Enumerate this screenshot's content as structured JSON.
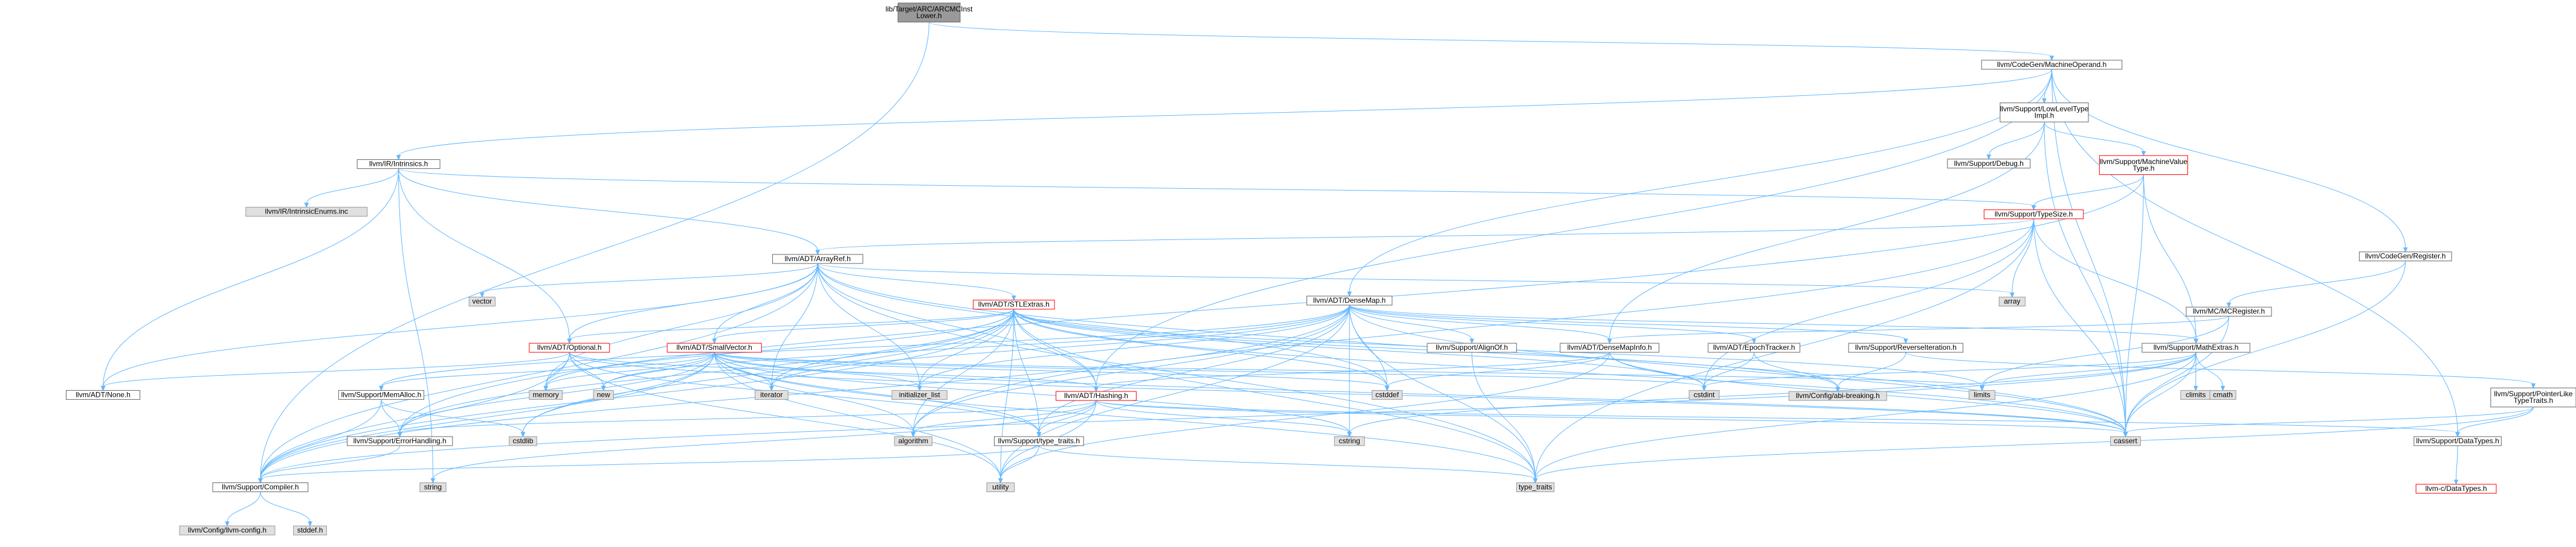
{
  "colors": {
    "edge": "#63b8ff",
    "root_fill": "#999999",
    "root_stroke": "#666666",
    "normal_fill": "#ffffff",
    "normal_stroke": "#666666",
    "truncated_stroke": "#ff0000",
    "system_fill": "#e0e0e0",
    "system_stroke": "#999999"
  },
  "nodes": {
    "root": [
      "lib/Target/ARC/ARCMCInst",
      "Lower.h"
    ],
    "machineoperand": [
      "llvm/CodeGen/MachineOperand.h"
    ],
    "intrinsics": [
      "llvm/IR/Intrinsics.h"
    ],
    "lowleveltype": [
      "llvm/Support/LowLevelType",
      "Impl.h"
    ],
    "intrinsicenums": [
      "llvm/IR/IntrinsicEnums.inc"
    ],
    "debug": [
      "llvm/Support/Debug.h"
    ],
    "machinevaluetype": [
      "llvm/Support/MachineValue",
      "Type.h"
    ],
    "typesize": [
      "llvm/Support/TypeSize.h"
    ],
    "arrayref": [
      "llvm/ADT/ArrayRef.h"
    ],
    "register": [
      "llvm/CodeGen/Register.h"
    ],
    "array": [
      "array"
    ],
    "mcregister": [
      "llvm/MC/MCRegister.h"
    ],
    "vector": [
      "vector"
    ],
    "stlextras": [
      "llvm/ADT/STLExtras.h"
    ],
    "densemap": [
      "llvm/ADT/DenseMap.h"
    ],
    "optional": [
      "llvm/ADT/Optional.h"
    ],
    "smallvector": [
      "llvm/ADT/SmallVector.h"
    ],
    "alignof": [
      "llvm/Support/AlignOf.h"
    ],
    "densemapinfo": [
      "llvm/ADT/DenseMapInfo.h"
    ],
    "epochtracker": [
      "llvm/ADT/EpochTracker.h"
    ],
    "reverseiteration": [
      "llvm/Support/ReverseIteration.h"
    ],
    "mathextras": [
      "llvm/Support/MathExtras.h"
    ],
    "none": [
      "llvm/ADT/None.h"
    ],
    "memalloc": [
      "llvm/Support/MemAlloc.h"
    ],
    "memory": [
      "memory"
    ],
    "new": [
      "new"
    ],
    "iterator": [
      "iterator"
    ],
    "initializer_list": [
      "initializer_list"
    ],
    "cstddef": [
      "cstddef"
    ],
    "hashing": [
      "llvm/ADT/Hashing.h"
    ],
    "abibreaking": [
      "llvm/Config/abi-breaking.h"
    ],
    "cstdint": [
      "cstdint"
    ],
    "limits": [
      "limits"
    ],
    "climits": [
      "climits"
    ],
    "cmath": [
      "cmath"
    ],
    "pointerliketypetraits": [
      "llvm/Support/PointerLike",
      "TypeTraits.h"
    ],
    "errorhandling": [
      "llvm/Support/ErrorHandling.h"
    ],
    "cstdlib": [
      "cstdlib"
    ],
    "algorithm": [
      "algorithm"
    ],
    "typetraits_support": [
      "llvm/Support/type_traits.h"
    ],
    "cstring": [
      "cstring"
    ],
    "cassert": [
      "cassert"
    ],
    "datatypes": [
      "llvm/Support/DataTypes.h"
    ],
    "compiler": [
      "llvm/Support/Compiler.h"
    ],
    "string": [
      "string"
    ],
    "utility": [
      "utility"
    ],
    "type_traits": [
      "type_traits"
    ],
    "cdatatypes": [
      "llvm-c/DataTypes.h"
    ],
    "llvmconfig": [
      "llvm/Config/llvm-config.h"
    ],
    "stddef": [
      "stddef.h"
    ]
  }
}
